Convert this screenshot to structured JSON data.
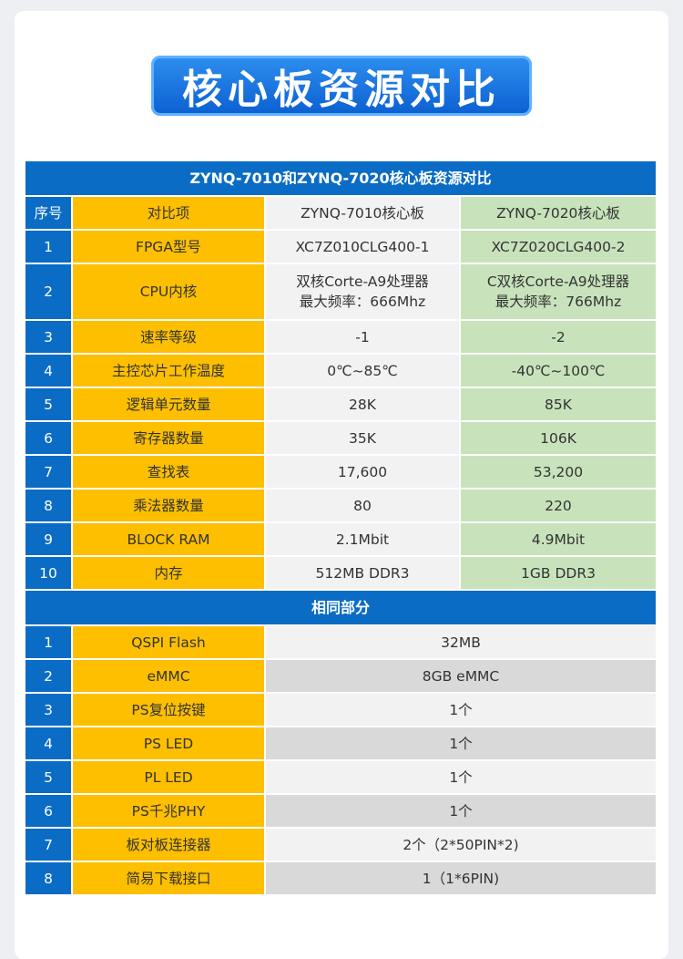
{
  "page_title": "核心板资源对比",
  "table_title": "ZYNQ-7010和ZYNQ-7020核心板资源对比",
  "columns": [
    "序号",
    "对比项",
    "ZYNQ-7010核心板",
    "ZYNQ-7020核心板"
  ],
  "rows": [
    {
      "no": "1",
      "item": "FPGA型号",
      "a": [
        "XC7Z010CLG400-1"
      ],
      "b": [
        "XC7Z020CLG400-2"
      ]
    },
    {
      "no": "2",
      "item": "CPU内核",
      "a": [
        "双核Corte-A9处理器",
        "最大频率：666Mhz"
      ],
      "b": [
        "C双核Corte-A9处理器",
        "最大频率：766Mhz"
      ]
    },
    {
      "no": "3",
      "item": "速率等级",
      "a": [
        "-1"
      ],
      "b": [
        "-2"
      ]
    },
    {
      "no": "4",
      "item": "主控芯片工作温度",
      "a": [
        "0℃~85℃"
      ],
      "b": [
        "-40℃~100℃"
      ]
    },
    {
      "no": "5",
      "item": "逻辑单元数量",
      "a": [
        "28K"
      ],
      "b": [
        "85K"
      ]
    },
    {
      "no": "6",
      "item": "寄存器数量",
      "a": [
        "35K"
      ],
      "b": [
        "106K"
      ]
    },
    {
      "no": "7",
      "item": "查找表",
      "a": [
        "17,600"
      ],
      "b": [
        "53,200"
      ]
    },
    {
      "no": "8",
      "item": "乘法器数量",
      "a": [
        "80"
      ],
      "b": [
        "220"
      ]
    },
    {
      "no": "9",
      "item": "BLOCK RAM",
      "a": [
        "2.1Mbit"
      ],
      "b": [
        "4.9Mbit"
      ]
    },
    {
      "no": "10",
      "item": "内存",
      "a": [
        "512MB DDR3"
      ],
      "b": [
        "1GB DDR3"
      ]
    }
  ],
  "shared_title": "相同部分",
  "shared_rows": [
    {
      "no": "1",
      "item": "QSPI Flash",
      "value": "32MB"
    },
    {
      "no": "2",
      "item": "eMMC",
      "value": "8GB eMMC"
    },
    {
      "no": "3",
      "item": "PS复位按键",
      "value": "1个"
    },
    {
      "no": "4",
      "item": "PS LED",
      "value": "1个"
    },
    {
      "no": "5",
      "item": "PL LED",
      "value": "1个"
    },
    {
      "no": "6",
      "item": "PS千兆PHY",
      "value": "1个"
    },
    {
      "no": "7",
      "item": "板对板连接器",
      "value": "2个（2*50PIN*2)"
    },
    {
      "no": "8",
      "item": "简易下载接口",
      "value": "1（1*6PIN)"
    }
  ]
}
